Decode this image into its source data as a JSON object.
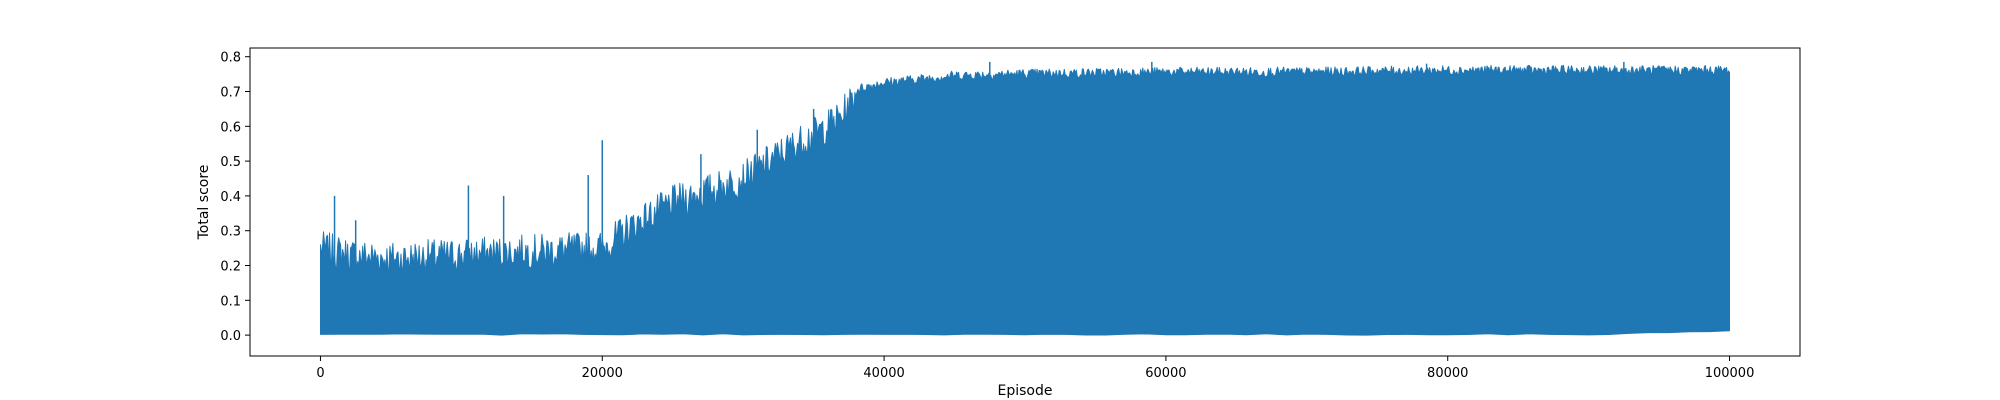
{
  "chart_data": {
    "type": "line",
    "title": "",
    "xlabel": "Episode",
    "ylabel": "Total score",
    "xlim": [
      -5000,
      105000
    ],
    "ylim": [
      -0.06,
      0.825
    ],
    "x_ticks": [
      0,
      20000,
      40000,
      60000,
      80000,
      100000
    ],
    "x_tick_labels": [
      "0",
      "20000",
      "40000",
      "60000",
      "80000",
      "100000"
    ],
    "y_ticks": [
      0.0,
      0.1,
      0.2,
      0.3,
      0.4,
      0.5,
      0.6,
      0.7,
      0.8
    ],
    "y_tick_labels": [
      "0.0",
      "0.1",
      "0.2",
      "0.3",
      "0.4",
      "0.5",
      "0.6",
      "0.7",
      "0.8"
    ],
    "grid": false,
    "color": "#1f77b4",
    "series": [
      {
        "x_range": [
          0,
          100000
        ],
        "envelope_episode": [
          0,
          2000,
          5000,
          10000,
          15000,
          20000,
          22000,
          25000,
          28000,
          30000,
          33000,
          36000,
          37000,
          38000,
          40000,
          45000,
          50000,
          60000,
          70000,
          80000,
          90000,
          100000
        ],
        "envelope_min": [
          0.0,
          0.0,
          0.0,
          0.0,
          0.0,
          0.0,
          0.0,
          0.0,
          0.0,
          0.0,
          0.0,
          0.0,
          0.0,
          0.0,
          0.0,
          0.0,
          0.0,
          0.0,
          0.0,
          0.0,
          0.0,
          0.01
        ],
        "envelope_max": [
          0.27,
          0.25,
          0.24,
          0.25,
          0.26,
          0.27,
          0.33,
          0.4,
          0.44,
          0.47,
          0.55,
          0.62,
          0.65,
          0.71,
          0.73,
          0.75,
          0.755,
          0.76,
          0.76,
          0.765,
          0.765,
          0.765
        ],
        "spike_episode": [
          1000,
          2500,
          10500,
          13000,
          19000,
          20000,
          27000,
          31000,
          35000,
          47500,
          59000,
          78500,
          92500
        ],
        "spike_value": [
          0.4,
          0.33,
          0.43,
          0.4,
          0.46,
          0.56,
          0.52,
          0.59,
          0.65,
          0.785,
          0.785,
          0.78,
          0.785
        ]
      }
    ]
  }
}
